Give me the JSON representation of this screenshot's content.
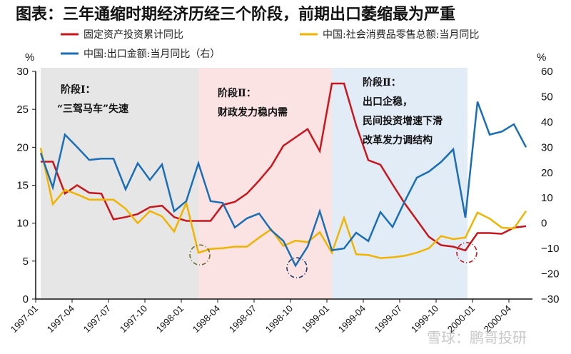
{
  "title": "图表：三年通缩时期经济历经三个阶段，前期出口萎缩最为严重",
  "watermark": "雪球：鹏哥投研",
  "chart_data": {
    "type": "line",
    "title": "图表：三年通缩时期经济历经三个阶段，前期出口萎缩最为严重",
    "ylabel_left": "%",
    "ylabel_right": "%",
    "ylim_left": [
      0,
      30
    ],
    "ylim_right": [
      -30,
      60
    ],
    "yticks_left": [
      "0",
      "5",
      "10",
      "15",
      "20",
      "25",
      "30"
    ],
    "yticks_right": [
      "-30",
      "-20",
      "-10",
      "0",
      "10",
      "20",
      "30",
      "40",
      "50",
      "60"
    ],
    "xtick_labels": [
      "1997-01",
      "1997-04",
      "1997-07",
      "1997-10",
      "1998-01",
      "1998-04",
      "1998-07",
      "1998-10",
      "1999-01",
      "1999-04",
      "1999-07",
      "1999-10",
      "2000-01",
      "2000-04"
    ],
    "grid": false,
    "legend_position": "top",
    "x": [
      "1997-01",
      "1997-02",
      "1997-03",
      "1997-04",
      "1997-05",
      "1997-06",
      "1997-07",
      "1997-08",
      "1997-09",
      "1997-10",
      "1997-11",
      "1997-12",
      "1998-01",
      "1998-02",
      "1998-03",
      "1998-04",
      "1998-05",
      "1998-06",
      "1998-07",
      "1998-08",
      "1998-09",
      "1998-10",
      "1998-11",
      "1998-12",
      "1999-01",
      "1999-02",
      "1999-03",
      "1999-04",
      "1999-05",
      "1999-06",
      "1999-07",
      "1999-08",
      "1999-09",
      "1999-10",
      "1999-11",
      "1999-12",
      "2000-01",
      "2000-02",
      "2000-03",
      "2000-04",
      "2000-05"
    ],
    "series": [
      {
        "name": "固定资产投资累计同比",
        "axis": "left",
        "color": "#c8161d",
        "values": [
          18.1,
          18.1,
          13.9,
          15.0,
          14.0,
          13.9,
          10.5,
          10.8,
          11.2,
          12.1,
          12.3,
          10.8,
          10.3,
          10.3,
          10.3,
          12.4,
          12.8,
          13.9,
          15.6,
          17.5,
          20.2,
          21.3,
          22.4,
          19.5,
          28.4,
          28.4,
          22.9,
          18.3,
          17.7,
          15.1,
          12.6,
          10.4,
          8.2,
          7.1,
          6.9,
          6.4,
          8.7,
          8.7,
          8.6,
          9.4,
          9.6
        ]
      },
      {
        "name": "中国:社会消费品零售总额:当月同比",
        "axis": "left",
        "color": "#f0b400",
        "values": [
          19.9,
          12.5,
          14.4,
          13.8,
          13.1,
          13.1,
          13.1,
          11.9,
          10.0,
          11.6,
          10.9,
          8.9,
          12.7,
          6.1,
          6.6,
          6.7,
          6.9,
          6.9,
          8.1,
          9.2,
          7.0,
          7.7,
          7.5,
          8.8,
          6.1,
          10.7,
          5.9,
          5.8,
          5.4,
          5.5,
          5.7,
          6.1,
          6.7,
          8.3,
          7.9,
          8.1,
          11.4,
          10.6,
          9.4,
          9.3,
          11.6
        ]
      },
      {
        "name": "中国:出口金额:当月同比（右）",
        "axis": "right",
        "color": "#1a6eb5",
        "values": [
          27.7,
          14.1,
          35.0,
          30.1,
          25.0,
          25.5,
          25.5,
          13.4,
          23.7,
          17.1,
          23.2,
          4.7,
          8.7,
          23.7,
          8.7,
          8.0,
          -1.7,
          1.9,
          3.8,
          -2.8,
          -7.0,
          -16.8,
          -9.3,
          4.7,
          -10.7,
          -10.0,
          -3.8,
          -7.1,
          4.4,
          -1.5,
          8.6,
          18.0,
          20.4,
          24.2,
          29.2,
          2.2,
          48.0,
          35.0,
          36.2,
          39.1,
          30.0
        ]
      }
    ],
    "periods": [
      {
        "start": "1997-01",
        "end": "1998-02",
        "color": "#e6e6e6",
        "label_lines": [
          "阶段Ⅰ：",
          "“三驾马车”失速"
        ]
      },
      {
        "start": "1998-02",
        "end": "1999-01",
        "color": "#fbe3e3",
        "label_lines": [
          "阶段Ⅱ：",
          "财政发力稳内需"
        ]
      },
      {
        "start": "1999-01",
        "end": "1999-12",
        "color": "#e2ecf7",
        "label_lines": [
          "阶段Ⅱ：",
          "出口企稳，",
          "民间投资增速下滑",
          "改革发力调结构"
        ]
      }
    ],
    "highlights": [
      {
        "series": 1,
        "x": "1998-02",
        "color": "#6b6b2a"
      },
      {
        "series": 2,
        "x": "1998-10",
        "color": "#1e3a6b"
      },
      {
        "series": 0,
        "x": "1999-12",
        "color": "#c8161d"
      }
    ]
  }
}
